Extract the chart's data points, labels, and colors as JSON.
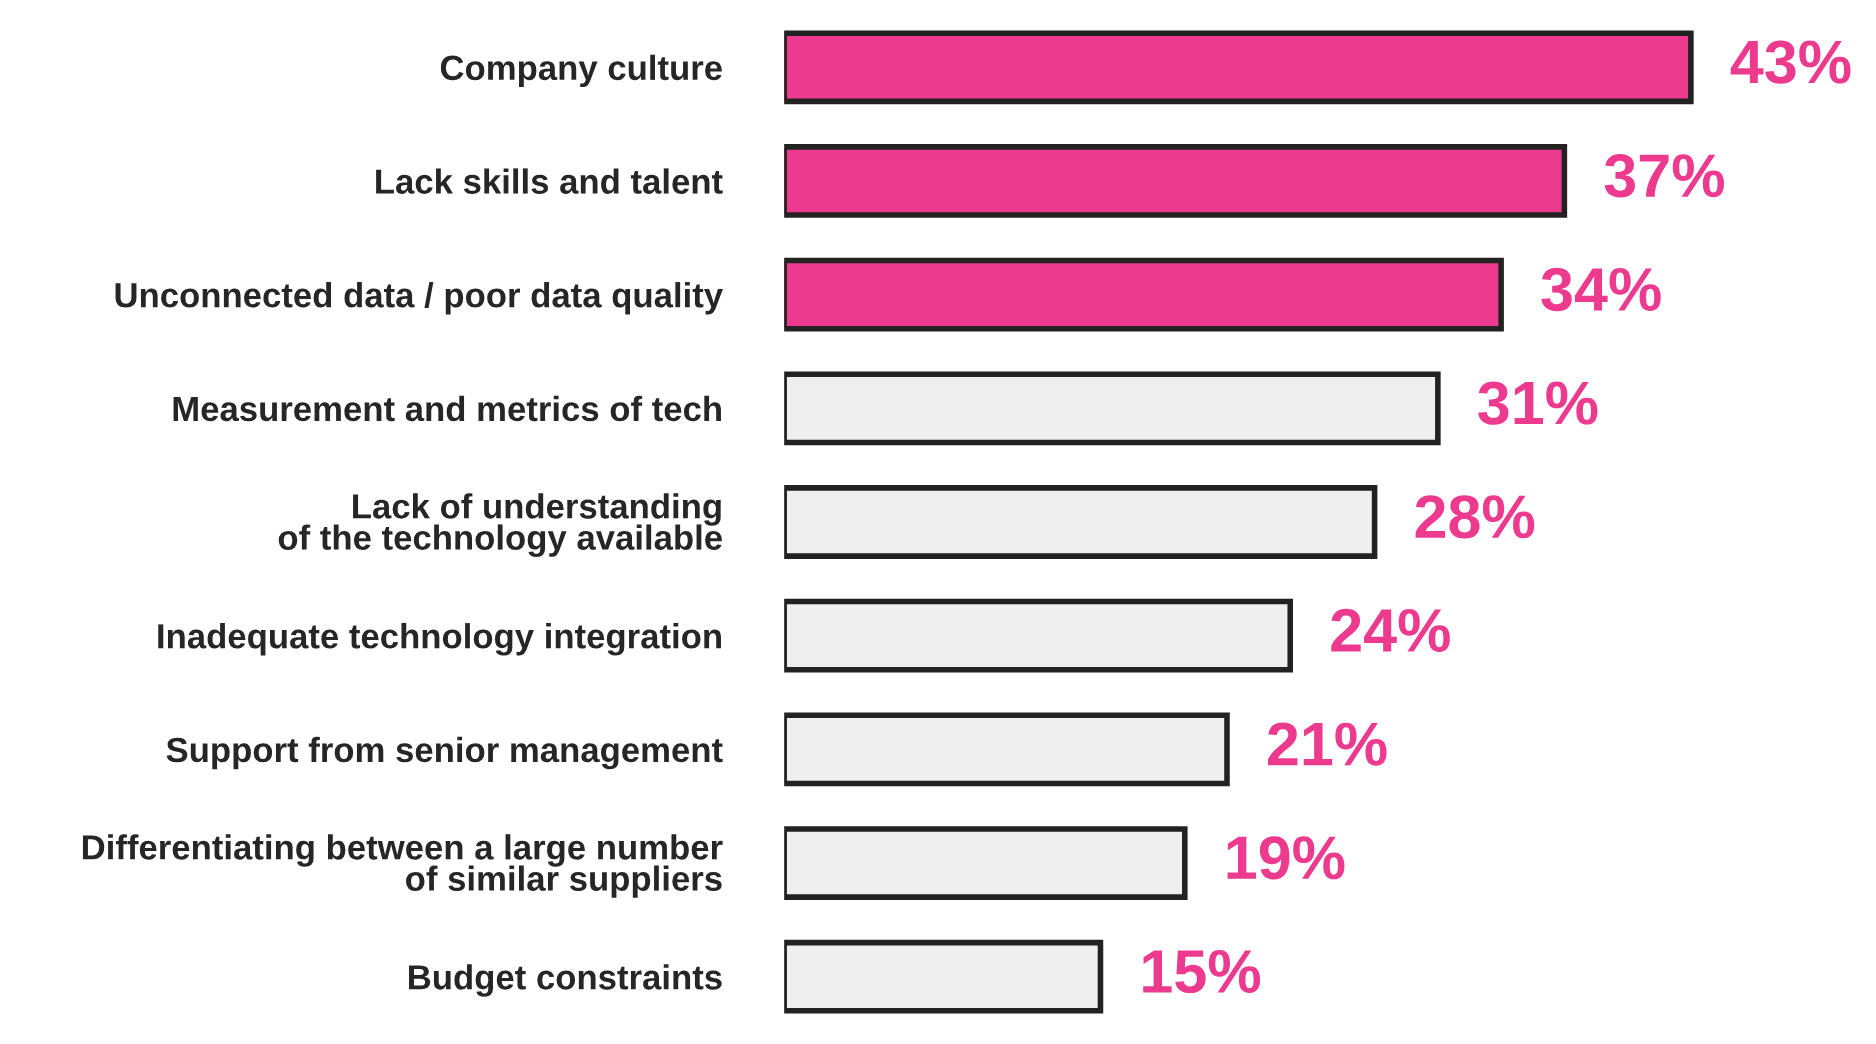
{
  "chart_data": {
    "type": "bar",
    "orientation": "horizontal",
    "categories": [
      "Company culture",
      "Lack skills and talent",
      "Unconnected data / poor data quality",
      "Measurement and metrics of tech",
      "Lack of understanding\nof the technology available",
      "Inadequate technology integration",
      "Support from senior management",
      "Differentiating between a large number\nof similar suppliers",
      "Budget constraints"
    ],
    "values": [
      43,
      37,
      34,
      31,
      28,
      24,
      21,
      19,
      15
    ],
    "value_labels": [
      "43%",
      "37%",
      "34%",
      "31%",
      "28%",
      "24%",
      "21%",
      "19%",
      "15%"
    ],
    "colors": [
      "#ec3b8f",
      "#ec3b8f",
      "#ec3b8f",
      "#efefef",
      "#efefef",
      "#efefef",
      "#efefef",
      "#efefef",
      "#efefef"
    ],
    "grid": false,
    "legend": false,
    "tick_labels": "y"
  }
}
